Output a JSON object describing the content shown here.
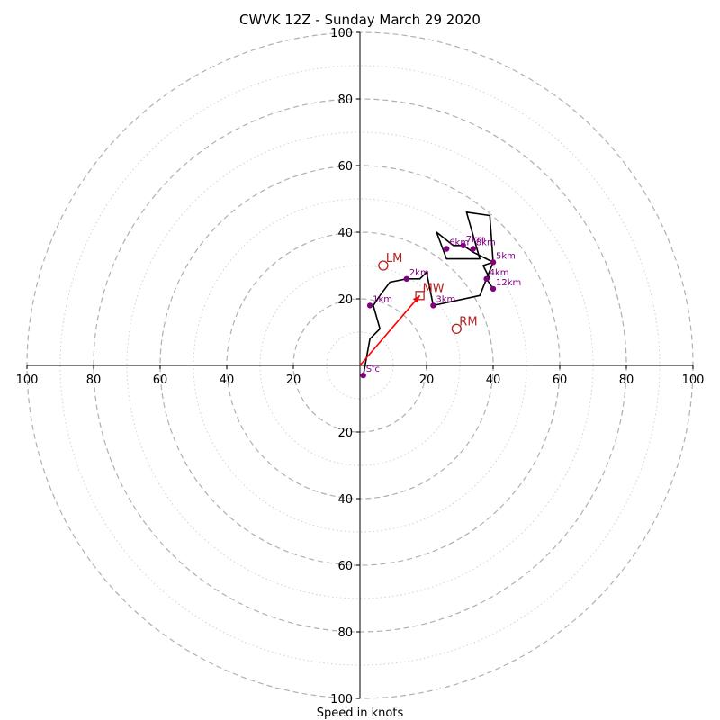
{
  "chart_data": {
    "type": "scatter",
    "title": "CWVK 12Z - Sunday March 29 2020",
    "xlabel": "Speed in knots",
    "ylabel": "",
    "xlim": [
      -100,
      100
    ],
    "ylim": [
      -100,
      100
    ],
    "grid": true,
    "major_rings": [
      20,
      40,
      60,
      80,
      100
    ],
    "minor_rings": [
      10,
      30,
      50,
      70,
      90
    ],
    "x_ticks": [
      {
        "value": -100,
        "label": "100"
      },
      {
        "value": -80,
        "label": "80"
      },
      {
        "value": -60,
        "label": "60"
      },
      {
        "value": -40,
        "label": "40"
      },
      {
        "value": -20,
        "label": "20"
      },
      {
        "value": 20,
        "label": "20"
      },
      {
        "value": 40,
        "label": "40"
      },
      {
        "value": 60,
        "label": "60"
      },
      {
        "value": 80,
        "label": "80"
      },
      {
        "value": 100,
        "label": "100"
      }
    ],
    "y_ticks": [
      {
        "value": 100,
        "label": "100"
      },
      {
        "value": 80,
        "label": "80"
      },
      {
        "value": 60,
        "label": "60"
      },
      {
        "value": 40,
        "label": "40"
      },
      {
        "value": 20,
        "label": "20"
      },
      {
        "value": -20,
        "label": "20"
      },
      {
        "value": -40,
        "label": "40"
      },
      {
        "value": -60,
        "label": "60"
      },
      {
        "value": -80,
        "label": "80"
      },
      {
        "value": -100,
        "label": "100"
      }
    ],
    "hodograph_trace": [
      [
        1,
        -3
      ],
      [
        3,
        8
      ],
      [
        6,
        11
      ],
      [
        4,
        18
      ],
      [
        6,
        21
      ],
      [
        9,
        25
      ],
      [
        14,
        26
      ],
      [
        18,
        26
      ],
      [
        20,
        28
      ],
      [
        22,
        18
      ],
      [
        36,
        21
      ],
      [
        40,
        31
      ],
      [
        39,
        45
      ],
      [
        32,
        46
      ],
      [
        36,
        32
      ],
      [
        26,
        32
      ],
      [
        23,
        40
      ],
      [
        28,
        36
      ],
      [
        31,
        36
      ],
      [
        34,
        34
      ],
      [
        38,
        32
      ],
      [
        40,
        31
      ],
      [
        37,
        30
      ],
      [
        39,
        26
      ],
      [
        38,
        26
      ],
      [
        40,
        23
      ]
    ],
    "height_points": [
      {
        "label": "Sfc",
        "x": 1,
        "y": -3
      },
      {
        "label": "1km",
        "x": 3,
        "y": 18
      },
      {
        "label": "2km",
        "x": 14,
        "y": 26
      },
      {
        "label": "3km",
        "x": 22,
        "y": 18
      },
      {
        "label": "4km",
        "x": 38,
        "y": 26
      },
      {
        "label": "5km",
        "x": 40,
        "y": 31
      },
      {
        "label": "6km",
        "x": 26,
        "y": 35
      },
      {
        "label": "7km",
        "x": 31,
        "y": 36
      },
      {
        "label": "8km",
        "x": 34,
        "y": 35
      },
      {
        "label": "12km",
        "x": 40,
        "y": 23
      }
    ],
    "storm_motions": [
      {
        "label": "LM",
        "x": 7,
        "y": 30,
        "marker": "circle"
      },
      {
        "label": "MW",
        "x": 18,
        "y": 21,
        "marker": "square"
      },
      {
        "label": "RM",
        "x": 29,
        "y": 11,
        "marker": "circle"
      }
    ],
    "motion_vector": {
      "from": [
        0,
        0
      ],
      "to": [
        18,
        21
      ]
    },
    "colors": {
      "trace": "#000000",
      "height_points": "#800080",
      "storm_motion": "#b22222",
      "vector": "#ff0000",
      "major_grid": "#b0b0b0",
      "minor_grid": "#d0d0d0"
    }
  }
}
